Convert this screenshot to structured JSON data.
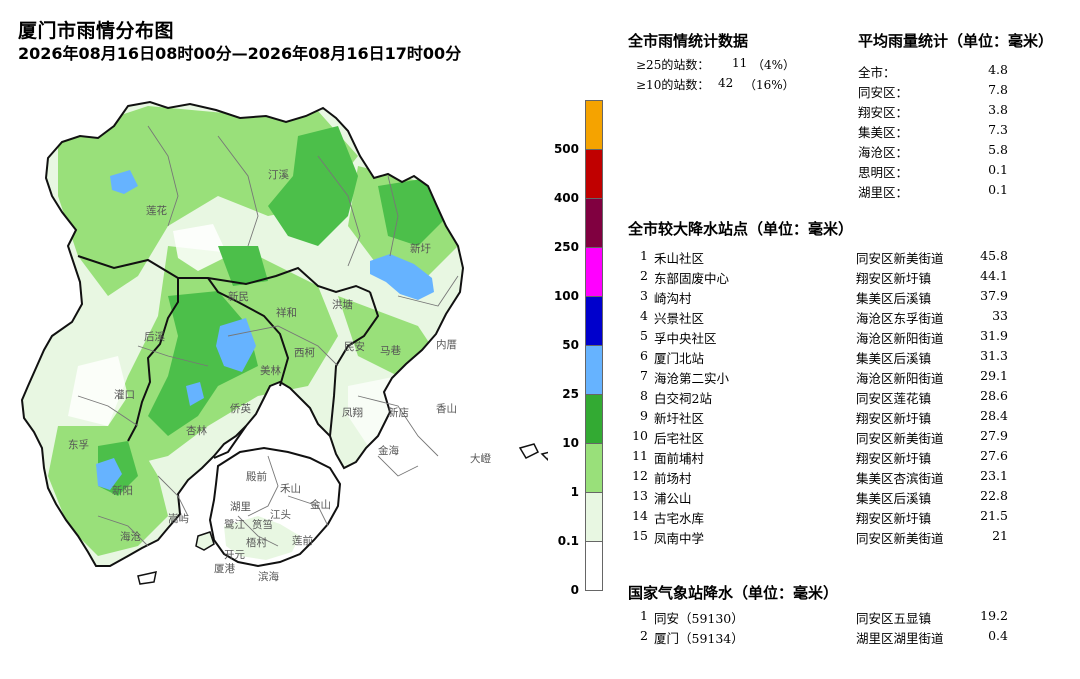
{
  "header": {
    "title": "厦门市雨情分布图",
    "time_range": "2026年08月16日08时00分—2026年08月16日17时00分"
  },
  "legend": {
    "colors": [
      "#f5a300",
      "#c00000",
      "#800040",
      "#ff00ff",
      "#0000cc",
      "#66b3ff",
      "#33aa33",
      "#99e07a",
      "#e8f7e2",
      "#ffffff"
    ],
    "labels": [
      "500",
      "400",
      "250",
      "100",
      "50",
      "25",
      "10",
      "1",
      "0.1",
      "0"
    ]
  },
  "map": {
    "place_names": [
      "汀溪",
      "莲花",
      "新圩",
      "新民",
      "祥和",
      "洪塘",
      "后溪",
      "西柯",
      "民安",
      "马巷",
      "内厝",
      "灌口",
      "美林",
      "凤翔",
      "新店",
      "香山",
      "侨英",
      "东孚",
      "杏林",
      "金海",
      "大嶝",
      "殿前",
      "禾山",
      "新阳",
      "湖里",
      "江头",
      "金山",
      "海沧",
      "嵩屿",
      "鹭江",
      "筼筜",
      "梧村",
      "莲前",
      "开元",
      "滨海",
      "厦港"
    ]
  },
  "stats": {
    "title": "全市雨情统计数据",
    "rows": [
      {
        "label": "≥25的站数：",
        "count": "11",
        "pct": "（4%）"
      },
      {
        "label": "≥10的站数：",
        "count": "42",
        "pct": "（16%）"
      }
    ]
  },
  "avg": {
    "title": "平均雨量统计（单位：毫米）",
    "rows": [
      {
        "name": "全市：",
        "value": "4.8"
      },
      {
        "name": "同安区：",
        "value": "7.8"
      },
      {
        "name": "翔安区：",
        "value": "3.8"
      },
      {
        "name": "集美区：",
        "value": "7.3"
      },
      {
        "name": "海沧区：",
        "value": "5.8"
      },
      {
        "name": "思明区：",
        "value": "0.1"
      },
      {
        "name": "湖里区：",
        "value": "0.1"
      }
    ]
  },
  "top_stations": {
    "title": "全市较大降水站点（单位：毫米）",
    "rows": [
      {
        "rank": "1",
        "name": "禾山社区",
        "area": "同安区新美街道",
        "value": "45.8"
      },
      {
        "rank": "2",
        "name": "东部固废中心",
        "area": "翔安区新圩镇",
        "value": "44.1"
      },
      {
        "rank": "3",
        "name": "崎沟村",
        "area": "集美区后溪镇",
        "value": "37.9"
      },
      {
        "rank": "4",
        "name": "兴景社区",
        "area": "海沧区东孚街道",
        "value": "33"
      },
      {
        "rank": "5",
        "name": "孚中央社区",
        "area": "海沧区新阳街道",
        "value": "31.9"
      },
      {
        "rank": "6",
        "name": "厦门北站",
        "area": "集美区后溪镇",
        "value": "31.3"
      },
      {
        "rank": "7",
        "name": "海沧第二实小",
        "area": "海沧区新阳街道",
        "value": "29.1"
      },
      {
        "rank": "8",
        "name": "白交祠2站",
        "area": "同安区莲花镇",
        "value": "28.6"
      },
      {
        "rank": "9",
        "name": "新圩社区",
        "area": "翔安区新圩镇",
        "value": "28.4"
      },
      {
        "rank": "10",
        "name": "后宅社区",
        "area": "同安区新美街道",
        "value": "27.9"
      },
      {
        "rank": "11",
        "name": "面前埔村",
        "area": "翔安区新圩镇",
        "value": "27.6"
      },
      {
        "rank": "12",
        "name": "前场村",
        "area": "集美区杏滨街道",
        "value": "23.1"
      },
      {
        "rank": "13",
        "name": "浦公山",
        "area": "集美区后溪镇",
        "value": "22.8"
      },
      {
        "rank": "14",
        "name": "古宅水库",
        "area": "翔安区新圩镇",
        "value": "21.5"
      },
      {
        "rank": "15",
        "name": "凤南中学",
        "area": "同安区新美街道",
        "value": "21"
      }
    ]
  },
  "national": {
    "title": "国家气象站降水（单位：毫米）",
    "rows": [
      {
        "rank": "1",
        "name": "同安（59130）",
        "area": "同安区五显镇",
        "value": "19.2"
      },
      {
        "rank": "2",
        "name": "厦门（59134）",
        "area": "湖里区湖里街道",
        "value": "0.4"
      }
    ]
  }
}
